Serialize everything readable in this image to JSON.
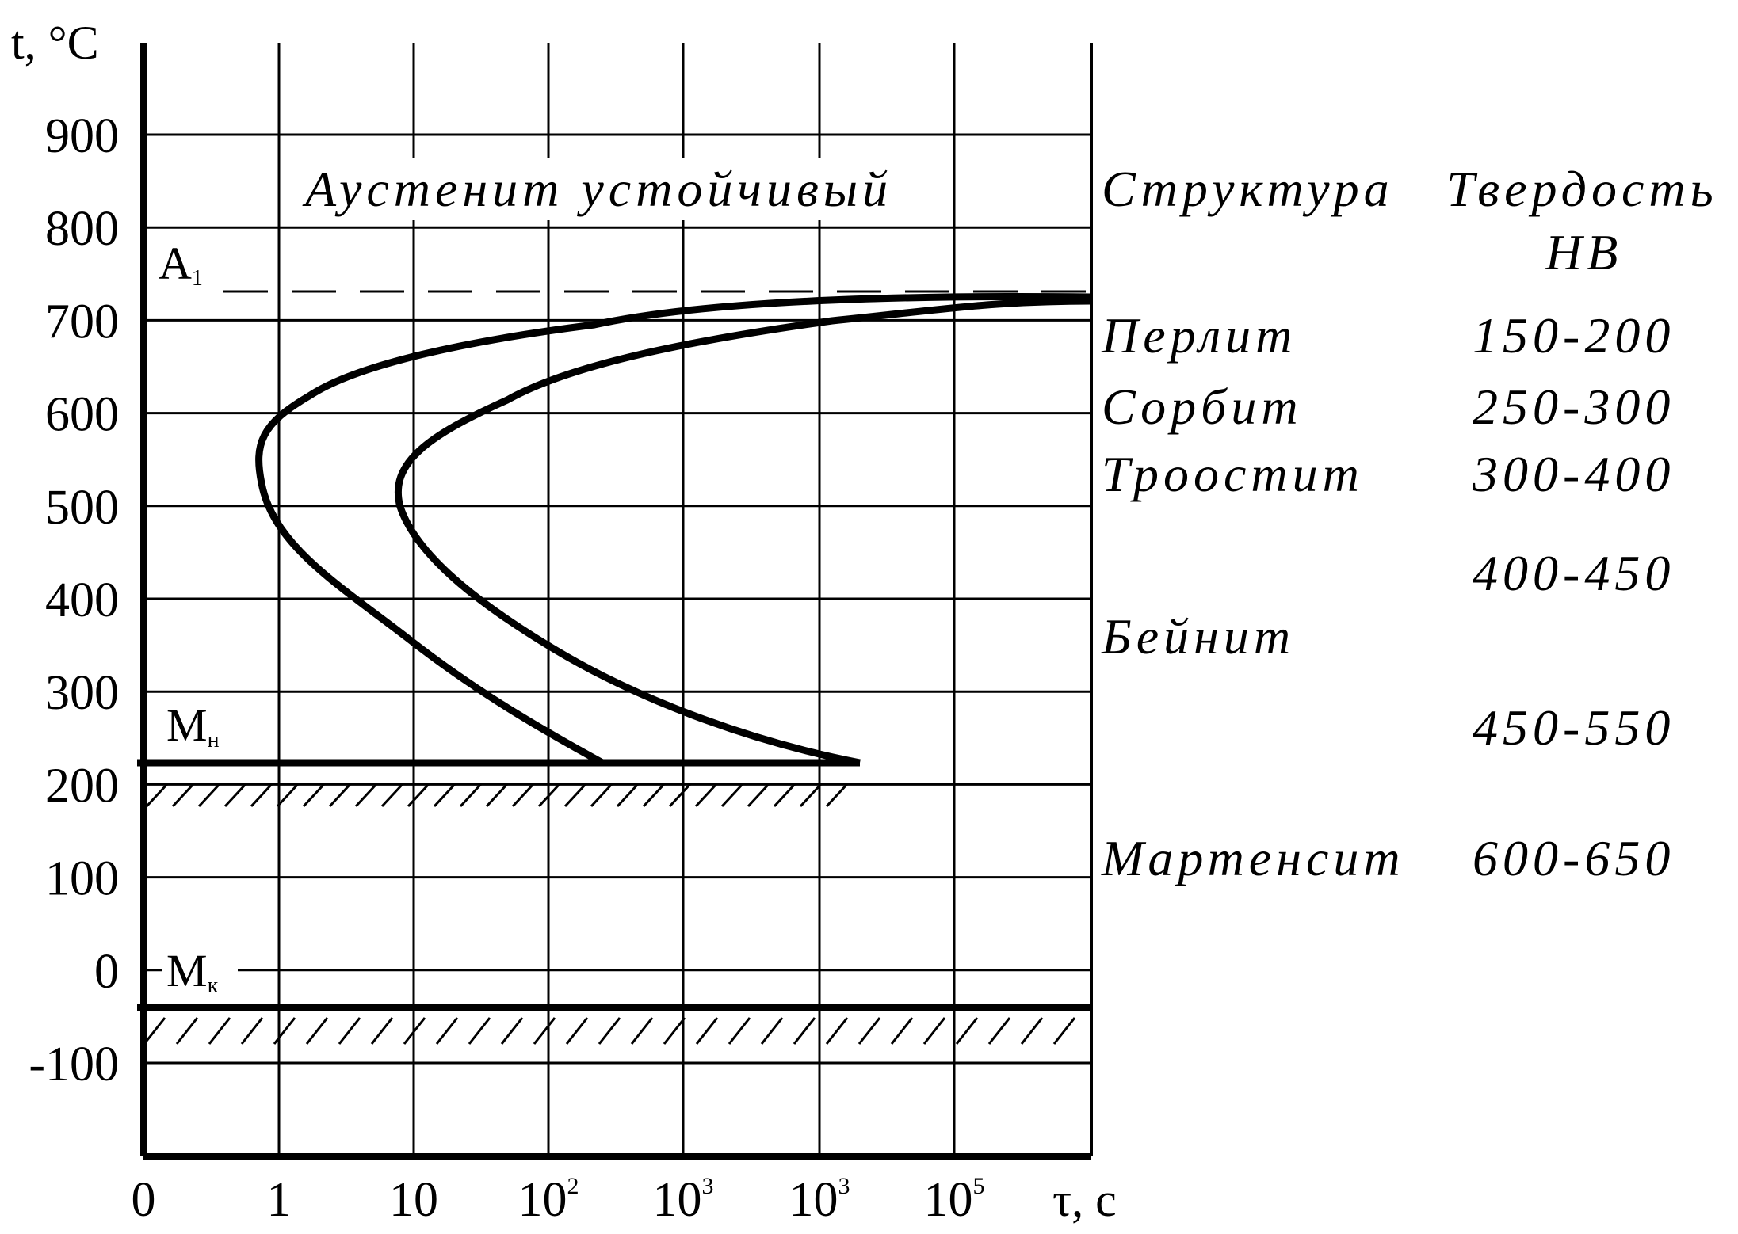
{
  "chart_data": {
    "type": "diagram",
    "y_axis_label": "t, °C",
    "x_axis_label": "τ, с",
    "y_ticks": [
      "900",
      "800",
      "700",
      "600",
      "500",
      "400",
      "300",
      "200",
      "100",
      "0",
      "-100"
    ],
    "x_ticks": [
      {
        "base": "0",
        "exp": ""
      },
      {
        "base": "1",
        "exp": ""
      },
      {
        "base": "10",
        "exp": ""
      },
      {
        "base": "10",
        "exp": "2"
      },
      {
        "base": "10",
        "exp": "3"
      },
      {
        "base": "10",
        "exp": "3"
      },
      {
        "base": "10",
        "exp": "5"
      }
    ],
    "region_label": "Аустенит устойчивый",
    "lines": {
      "A1": {
        "main": "A",
        "sub": "1",
        "temperature": 727,
        "style": "dashed"
      },
      "Mn": {
        "main": "M",
        "sub": "н",
        "temperature": 220,
        "style": "solid-hatched"
      },
      "Mk": {
        "main": "M",
        "sub": "к",
        "temperature": -40,
        "style": "solid-hatched"
      }
    },
    "table_headers": {
      "structure": "Структура",
      "hardness_line1": "Твердость",
      "hardness_line2": "HB"
    },
    "structures": [
      {
        "name": "Перлит",
        "hardness": "150-200"
      },
      {
        "name": "Сорбит",
        "hardness": "250-300"
      },
      {
        "name": "Троостит",
        "hardness": "300-400"
      },
      {
        "name": "",
        "hardness": "400-450"
      },
      {
        "name": "Бейнит",
        "hardness": ""
      },
      {
        "name": "",
        "hardness": "450-550"
      },
      {
        "name": "Мартенсит",
        "hardness": "600-650"
      }
    ],
    "curves": {
      "start_of_transformation": {
        "description_points": [
          [
            727,
            500000.0
          ],
          [
            700,
            100
          ],
          [
            650,
            10
          ],
          [
            590,
            1
          ],
          [
            520,
            0.7
          ],
          [
            470,
            1
          ],
          [
            400,
            4
          ],
          [
            300,
            30
          ],
          [
            220,
            200
          ]
        ]
      },
      "end_of_transformation": {
        "description_points": [
          [
            727,
            500000.0
          ],
          [
            700,
            1000
          ],
          [
            650,
            100
          ],
          [
            580,
            20
          ],
          [
            520,
            8
          ],
          [
            470,
            10
          ],
          [
            400,
            40
          ],
          [
            300,
            300
          ],
          [
            220,
            2000
          ]
        ]
      }
    }
  }
}
